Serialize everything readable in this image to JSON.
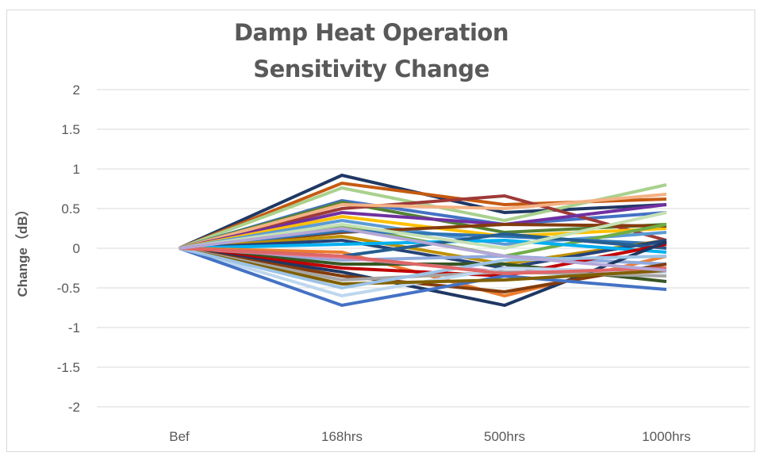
{
  "chart_data": {
    "type": "line",
    "title_line1": "Damp Heat Operation",
    "title_line2": "Sensitivity Change",
    "xlabel": "",
    "ylabel": "Change（dB）",
    "categories": [
      "Bef",
      "168hrs",
      "500hrs",
      "1000hrs"
    ],
    "ylim": [
      -2,
      2
    ],
    "yticks": [
      "2",
      "1.5",
      "1",
      "0.5",
      "0",
      "-0.5",
      "-1",
      "-1.5",
      "-2"
    ],
    "grid": true,
    "legend": "none",
    "series": [
      {
        "color": "#1f3864",
        "values": [
          0,
          0.92,
          0.45,
          0.55
        ]
      },
      {
        "color": "#c55a11",
        "values": [
          0,
          0.82,
          0.55,
          0.62
        ]
      },
      {
        "color": "#a9d18e",
        "values": [
          0,
          0.76,
          0.35,
          0.8
        ]
      },
      {
        "color": "#4472c4",
        "values": [
          0,
          0.6,
          0.3,
          0.45
        ]
      },
      {
        "color": "#548235",
        "values": [
          0,
          0.58,
          0.2,
          0.3
        ]
      },
      {
        "color": "#9e3a38",
        "values": [
          0,
          0.5,
          0.66,
          0.1
        ]
      },
      {
        "color": "#f4b183",
        "values": [
          0,
          0.55,
          0.5,
          0.68
        ]
      },
      {
        "color": "#7030a0",
        "values": [
          0,
          0.45,
          0.3,
          0.55
        ]
      },
      {
        "color": "#ffc000",
        "values": [
          0,
          0.4,
          0.15,
          0.25
        ]
      },
      {
        "color": "#5b9bd5",
        "values": [
          0,
          0.35,
          0.05,
          0.2
        ]
      },
      {
        "color": "#843c0c",
        "values": [
          0,
          0.2,
          0.3,
          0.28
        ]
      },
      {
        "color": "#70ad47",
        "values": [
          0,
          0.28,
          -0.1,
          0.3
        ]
      },
      {
        "color": "#2e75b6",
        "values": [
          0,
          0.22,
          0.15,
          0.05
        ]
      },
      {
        "color": "#bf9000",
        "values": [
          0,
          0.15,
          -0.2,
          0.1
        ]
      },
      {
        "color": "#264478",
        "values": [
          0,
          0.1,
          -0.25,
          0.1
        ]
      },
      {
        "color": "#00b0f0",
        "values": [
          0,
          0.05,
          0.1,
          -0.05
        ]
      },
      {
        "color": "#ed7d31",
        "values": [
          0,
          -0.05,
          -0.6,
          -0.1
        ]
      },
      {
        "color": "#255e91",
        "values": [
          0,
          -0.1,
          0.18,
          0.0
        ]
      },
      {
        "color": "#8faadc",
        "values": [
          0,
          -0.15,
          -0.1,
          -0.2
        ]
      },
      {
        "color": "#375623",
        "values": [
          0,
          -0.2,
          -0.2,
          -0.42
        ]
      },
      {
        "color": "#c00000",
        "values": [
          0,
          -0.25,
          -0.35,
          0.05
        ]
      },
      {
        "color": "#d48bb0",
        "values": [
          0,
          -0.12,
          -0.3,
          -0.3
        ]
      },
      {
        "color": "#1f3864",
        "values": [
          0,
          -0.3,
          -0.72,
          0.08
        ]
      },
      {
        "color": "#843c0c",
        "values": [
          0,
          -0.35,
          -0.55,
          -0.2
        ]
      },
      {
        "color": "#a5a5a5",
        "values": [
          0,
          -0.4,
          -0.3,
          -0.35
        ]
      },
      {
        "color": "#bdd7ee",
        "values": [
          0,
          -0.6,
          -0.25,
          -0.3
        ]
      },
      {
        "color": "#4472c4",
        "values": [
          0,
          -0.72,
          -0.35,
          -0.52
        ]
      },
      {
        "color": "#806000",
        "values": [
          0,
          -0.45,
          -0.4,
          -0.28
        ]
      },
      {
        "color": "#9dc3e6",
        "values": [
          0,
          -0.5,
          -0.15,
          -0.1
        ]
      },
      {
        "color": "#c5e0b4",
        "values": [
          0,
          0.3,
          0.0,
          0.45
        ]
      },
      {
        "color": "#e06666",
        "values": [
          0,
          -0.1,
          -0.32,
          -0.25
        ]
      },
      {
        "color": "#b4a7d6",
        "values": [
          0,
          0.25,
          -0.1,
          -0.28
        ]
      }
    ]
  }
}
